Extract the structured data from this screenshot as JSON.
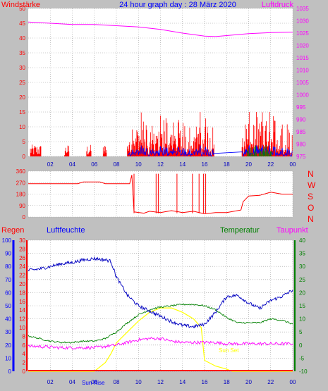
{
  "page": {
    "title": "24 hour graph day : 28 März 2020",
    "colors": {
      "background": "#c0c0c0",
      "plot_bg": "#ffffff",
      "grid": "#9a9a9a",
      "red": "#ff0000",
      "magenta": "#ff00ff",
      "blue": "#0000ff",
      "darkblue": "#0000c0",
      "green": "#008000",
      "yellow": "#ffff00"
    }
  },
  "x_ticks": [
    "02",
    "04",
    "06",
    "08",
    "10",
    "12",
    "14",
    "16",
    "18",
    "20",
    "22",
    "00"
  ],
  "chart_data": [
    {
      "type": "line",
      "name": "wind-pressure",
      "left_label": "Windstärke",
      "right_label": "Luftdruck",
      "left_ticks": [
        0,
        5,
        10,
        15,
        20,
        25,
        30,
        35,
        40,
        45,
        50
      ],
      "right_ticks": [
        975,
        980,
        985,
        990,
        995,
        1000,
        1005,
        1010,
        1015,
        1020,
        1025,
        1030,
        1035
      ],
      "ylim_left": [
        0,
        50
      ],
      "ylim_right": [
        975,
        1035
      ],
      "pressure": {
        "x": [
          0,
          2,
          4,
          6,
          8,
          10,
          12,
          14,
          16,
          17,
          18,
          20,
          22,
          24
        ],
        "y": [
          1029.5,
          1029,
          1028.5,
          1028.5,
          1028,
          1027.5,
          1026.5,
          1025,
          1023.8,
          1023.6,
          1024.0,
          1024.8,
          1025.2,
          1025.4
        ]
      },
      "wind_active_hours": [
        [
          0.2,
          1.2
        ],
        [
          3.3,
          3.7
        ],
        [
          5.3,
          5.7
        ],
        [
          6.8,
          7.1
        ],
        [
          9.0,
          16.9
        ],
        [
          19.4,
          24.0
        ]
      ],
      "wind_peak": 15
    },
    {
      "type": "line",
      "name": "wind-direction",
      "left_ticks": [
        0,
        90,
        180,
        270,
        360
      ],
      "right_letters": [
        "N",
        "W",
        "S",
        "O",
        "N"
      ],
      "ylim": [
        0,
        360
      ],
      "direction": {
        "x": [
          0,
          4.5,
          5,
          6.5,
          7,
          9.2,
          9.4,
          9.6,
          10.5,
          11,
          12,
          13,
          14,
          15,
          16,
          17,
          18,
          19.3,
          19.5,
          20,
          21,
          22,
          23,
          24
        ],
        "y": [
          262,
          262,
          275,
          275,
          262,
          262,
          330,
          40,
          30,
          45,
          35,
          50,
          35,
          45,
          25,
          35,
          35,
          55,
          120,
          165,
          170,
          195,
          180,
          180
        ]
      }
    },
    {
      "type": "line",
      "name": "rain-humidity-temp-dew",
      "left_label_rain": "Regen",
      "left_label_humidity": "Luftfeuchte",
      "right_label_temp": "Temperatur",
      "right_label_dew": "Taupunkt",
      "humidity_ticks": [
        0,
        10,
        20,
        30,
        40,
        50,
        60,
        70,
        80,
        90,
        100
      ],
      "rain_ticks": [
        0,
        2,
        4,
        6,
        8,
        10,
        12,
        14,
        16,
        18,
        20,
        22,
        24,
        26,
        28,
        30
      ],
      "temp_ticks": [
        -10,
        -5,
        0,
        5,
        10,
        15,
        20,
        25,
        30,
        35,
        40
      ],
      "ylim_humidity": [
        0,
        100
      ],
      "ylim_rain": [
        0,
        30
      ],
      "ylim_temp": [
        -10,
        40
      ],
      "humidity": {
        "x": [
          0,
          1,
          2,
          3,
          4,
          5,
          6,
          7,
          7.5,
          8,
          9,
          10,
          11,
          12,
          13,
          14,
          15,
          16,
          17,
          18,
          19,
          20,
          21,
          22,
          23,
          24
        ],
        "y": [
          77,
          78,
          80,
          82,
          83,
          85,
          86,
          85,
          84,
          72,
          58,
          50,
          46,
          42,
          38,
          35,
          34,
          36,
          45,
          57,
          58,
          52,
          48,
          54,
          57,
          62
        ]
      },
      "temperature": {
        "x": [
          0,
          1,
          2,
          3,
          4,
          5,
          6,
          7,
          8,
          9,
          10,
          11,
          12,
          13,
          14,
          15,
          16,
          17,
          18,
          19,
          20,
          21,
          22,
          23,
          24
        ],
        "y": [
          3.5,
          2.5,
          1.5,
          1,
          1,
          1.5,
          1.5,
          2.5,
          5,
          8.5,
          11.5,
          13.5,
          14.5,
          15,
          15.5,
          15.5,
          15,
          13.5,
          10.5,
          8.5,
          8.5,
          8.5,
          10,
          9.5,
          8
        ]
      },
      "dewpoint": {
        "x": [
          0,
          1,
          2,
          3,
          4,
          5,
          6,
          7,
          8,
          9,
          10,
          11,
          12,
          13,
          14,
          15,
          16,
          17,
          18,
          19,
          20,
          21,
          22,
          23,
          24
        ],
        "y": [
          -0.5,
          -0.5,
          -0.8,
          -1,
          -1,
          -1,
          -1,
          -0.5,
          0,
          1,
          2,
          2.5,
          2.5,
          1.5,
          1,
          1,
          1,
          1,
          0.5,
          0.5,
          0.5,
          0.5,
          0.5,
          0.5,
          0.5
        ]
      },
      "solar": {
        "x": [
          0,
          5,
          6,
          6.5,
          7,
          7.5,
          8,
          9,
          10,
          11,
          12,
          13,
          14,
          15,
          15.7,
          16,
          17,
          18,
          18.5,
          24
        ],
        "y": [
          0,
          0,
          0,
          1,
          2,
          4,
          6.5,
          9,
          11.5,
          13.5,
          14.5,
          14.5,
          13.5,
          12,
          10,
          2.5,
          1.2,
          0.5,
          0,
          0
        ]
      },
      "rain_total": 0,
      "sun_rise_label": "Sun Rise",
      "sun_set_label": "Sun Set",
      "sun_rise_hour": 6.2,
      "sun_set_hour": 18.3
    }
  ]
}
